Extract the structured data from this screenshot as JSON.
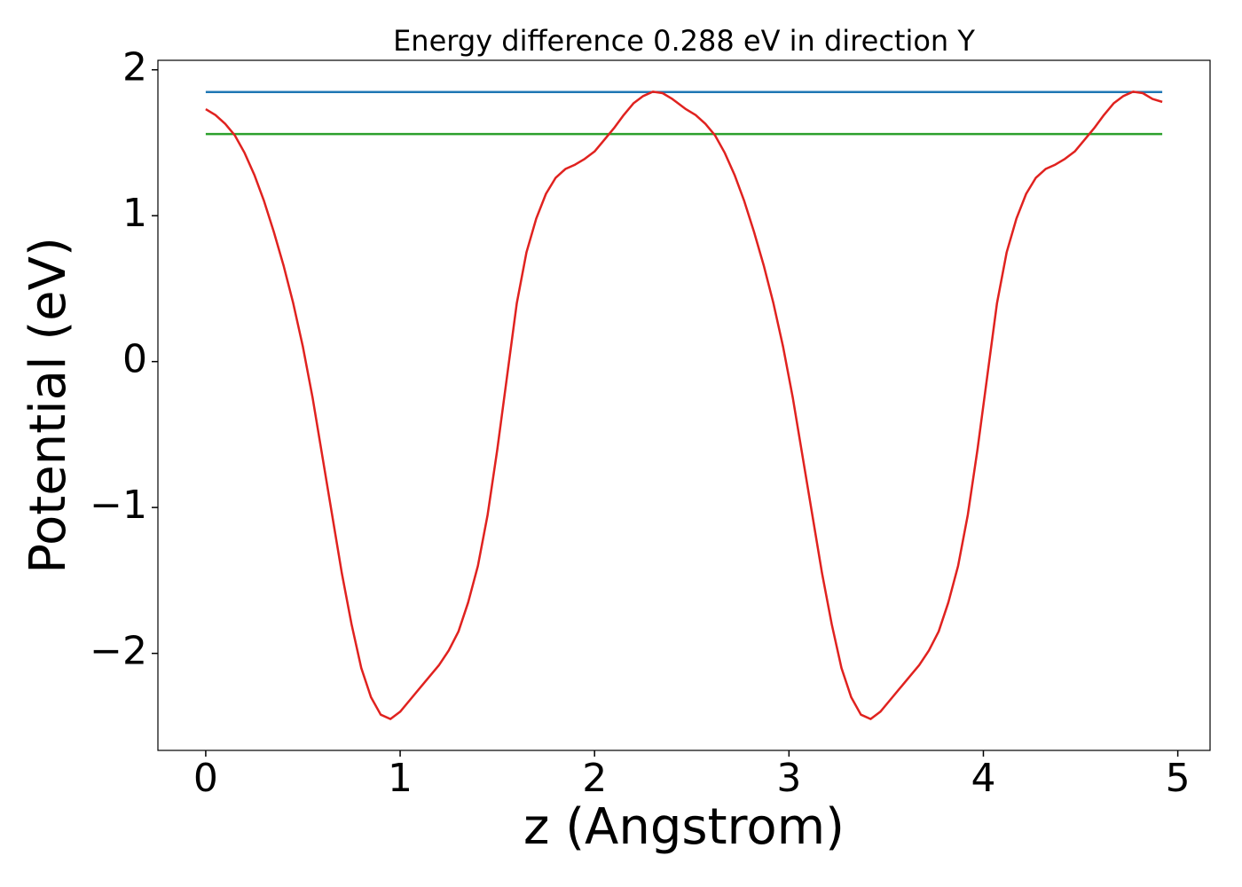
{
  "chart_data": {
    "type": "line",
    "title": "Energy difference 0.288 eV in direction Y",
    "xlabel": "z (Angstrom)",
    "ylabel": "Potential (eV)",
    "xlim": [
      -0.246,
      5.166
    ],
    "ylim": [
      -2.665,
      2.065
    ],
    "xticks": [
      0,
      1,
      2,
      3,
      4,
      5
    ],
    "yticks": [
      {
        "value": -2,
        "label": "−2"
      },
      {
        "value": -1,
        "label": "−1"
      },
      0,
      1,
      2
    ],
    "grid": false,
    "series": [
      {
        "color": "#1f77b4",
        "x": [
          0,
          4.92
        ],
        "values": [
          1.848,
          1.848
        ]
      },
      {
        "color": "#2ca02c",
        "x": [
          0,
          4.92
        ],
        "values": [
          1.56,
          1.56
        ]
      },
      {
        "color": "#e0221f",
        "x": [
          0,
          0.05,
          0.1,
          0.15,
          0.2,
          0.25,
          0.3,
          0.35,
          0.4,
          0.45,
          0.5,
          0.55,
          0.6,
          0.65,
          0.7,
          0.75,
          0.8,
          0.85,
          0.9,
          0.95,
          1,
          1.05,
          1.1,
          1.15,
          1.2,
          1.25,
          1.3,
          1.35,
          1.4,
          1.45,
          1.5,
          1.55,
          1.6,
          1.65,
          1.7,
          1.75,
          1.8,
          1.85,
          1.9,
          1.95,
          2,
          2.05,
          2.1,
          2.15,
          2.2,
          2.25,
          2.3,
          2.35,
          2.4,
          2.47,
          2.52,
          2.57,
          2.62,
          2.67,
          2.72,
          2.77,
          2.82,
          2.87,
          2.92,
          2.97,
          3.02,
          3.07,
          3.12,
          3.17,
          3.22,
          3.27,
          3.32,
          3.37,
          3.42,
          3.47,
          3.52,
          3.57,
          3.62,
          3.67,
          3.72,
          3.77,
          3.82,
          3.87,
          3.92,
          3.97,
          4.02,
          4.07,
          4.12,
          4.17,
          4.22,
          4.27,
          4.32,
          4.37,
          4.42,
          4.47,
          4.52,
          4.57,
          4.62,
          4.67,
          4.72,
          4.77,
          4.82,
          4.87,
          4.92
        ],
        "values": [
          1.73,
          1.69,
          1.63,
          1.55,
          1.43,
          1.28,
          1.1,
          0.89,
          0.66,
          0.4,
          0.1,
          -0.25,
          -0.65,
          -1.05,
          -1.45,
          -1.8,
          -2.1,
          -2.3,
          -2.42,
          -2.45,
          -2.4,
          -2.32,
          -2.24,
          -2.16,
          -2.08,
          -1.98,
          -1.85,
          -1.65,
          -1.4,
          -1.05,
          -0.6,
          -0.1,
          0.4,
          0.75,
          0.98,
          1.15,
          1.26,
          1.32,
          1.35,
          1.39,
          1.44,
          1.52,
          1.6,
          1.69,
          1.77,
          1.82,
          1.85,
          1.84,
          1.8,
          1.73,
          1.69,
          1.63,
          1.55,
          1.43,
          1.28,
          1.1,
          0.89,
          0.66,
          0.4,
          0.1,
          -0.25,
          -0.65,
          -1.05,
          -1.45,
          -1.8,
          -2.1,
          -2.3,
          -2.42,
          -2.45,
          -2.4,
          -2.32,
          -2.24,
          -2.16,
          -2.08,
          -1.98,
          -1.85,
          -1.65,
          -1.4,
          -1.05,
          -0.6,
          -0.1,
          0.4,
          0.75,
          0.98,
          1.15,
          1.26,
          1.32,
          1.35,
          1.39,
          1.44,
          1.52,
          1.6,
          1.69,
          1.77,
          1.82,
          1.85,
          1.84,
          1.8,
          1.78
        ]
      }
    ]
  }
}
